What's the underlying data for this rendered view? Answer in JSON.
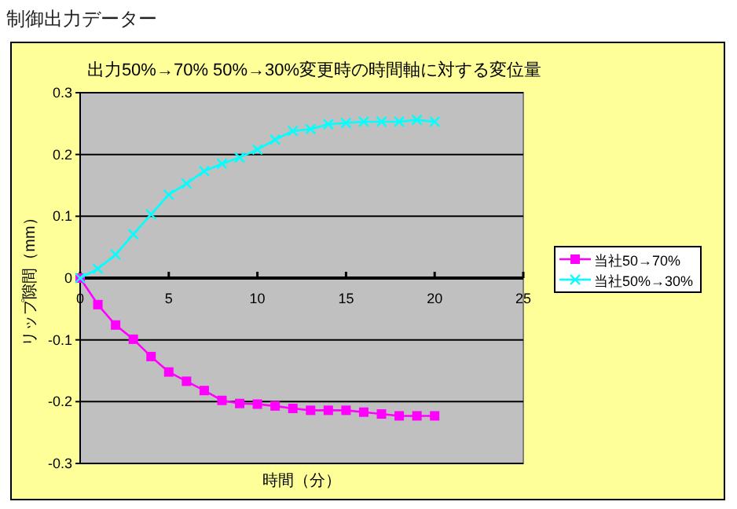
{
  "chart_data": {
    "type": "line",
    "title": "出力50%→70%  50%→30%変更時の時間軸に対する変位量",
    "xlabel": "時間（分）",
    "ylabel": "リップ隙間（mm）",
    "annotations": [
      "制御出力データー"
    ],
    "x": [
      0,
      1,
      2,
      3,
      4,
      5,
      6,
      7,
      8,
      9,
      10,
      11,
      12,
      13,
      14,
      15,
      16,
      17,
      18,
      19,
      20
    ],
    "series": [
      {
        "name": "当社50→70%",
        "color": "#ff00ff",
        "marker": "square",
        "values": [
          0,
          -0.043,
          -0.076,
          -0.099,
          -0.127,
          -0.152,
          -0.167,
          -0.182,
          -0.198,
          -0.203,
          -0.204,
          -0.207,
          -0.211,
          -0.214,
          -0.214,
          -0.214,
          -0.217,
          -0.22,
          -0.223,
          -0.223,
          -0.223
        ]
      },
      {
        "name": "当社50%→30%",
        "color": "#00ffff",
        "marker": "cross",
        "values": [
          0,
          0.015,
          0.038,
          0.071,
          0.103,
          0.135,
          0.153,
          0.173,
          0.185,
          0.195,
          0.208,
          0.224,
          0.238,
          0.241,
          0.249,
          0.251,
          0.253,
          0.253,
          0.253,
          0.256,
          0.253
        ]
      }
    ],
    "xlim": [
      0,
      25
    ],
    "xticks": [
      0,
      5,
      10,
      15,
      20,
      25
    ],
    "ylim": [
      -0.3,
      0.3
    ],
    "yticks": [
      -0.3,
      -0.2,
      -0.1,
      0,
      0.1,
      0.2,
      0.3
    ],
    "grid": "y",
    "legend": "right"
  }
}
